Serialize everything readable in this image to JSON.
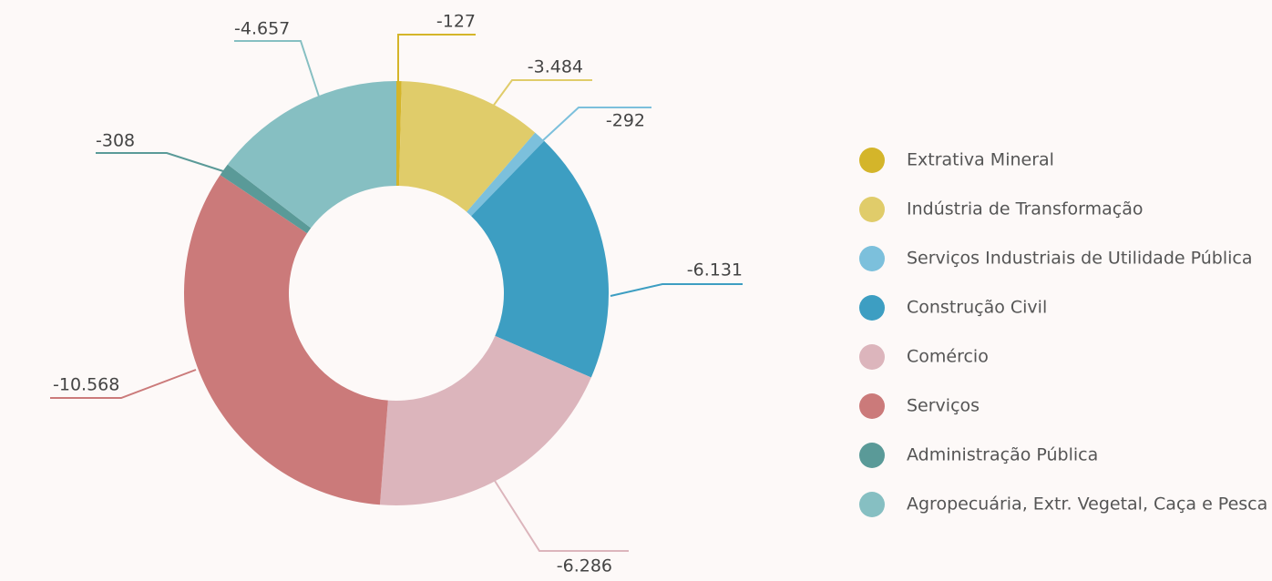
{
  "chart_data": {
    "type": "donut",
    "categories": [
      "Extrativa Mineral",
      "Indústria de Transformação",
      "Serviços Industriais de Utilidade Pública",
      "Construção  Civil",
      "Comércio",
      "Serviços",
      "Administração Pública",
      "Agropecuária,  Extr.  Vegetal, Caça e Pesca"
    ],
    "values": [
      -127,
      -3484,
      -292,
      -6131,
      -6286,
      -10568,
      -308,
      -4657
    ],
    "value_labels": [
      "-127",
      "-3.484",
      "-292",
      "-6.131",
      "-6.286",
      "-10.568",
      "-308",
      "-4.657"
    ],
    "colors": [
      "#d4b52a",
      "#e0cc6a",
      "#7cc0dc",
      "#3d9ec2",
      "#dcb5bc",
      "#cb7a7a",
      "#5a9a98",
      "#86bfc2"
    ],
    "legend": "right"
  }
}
